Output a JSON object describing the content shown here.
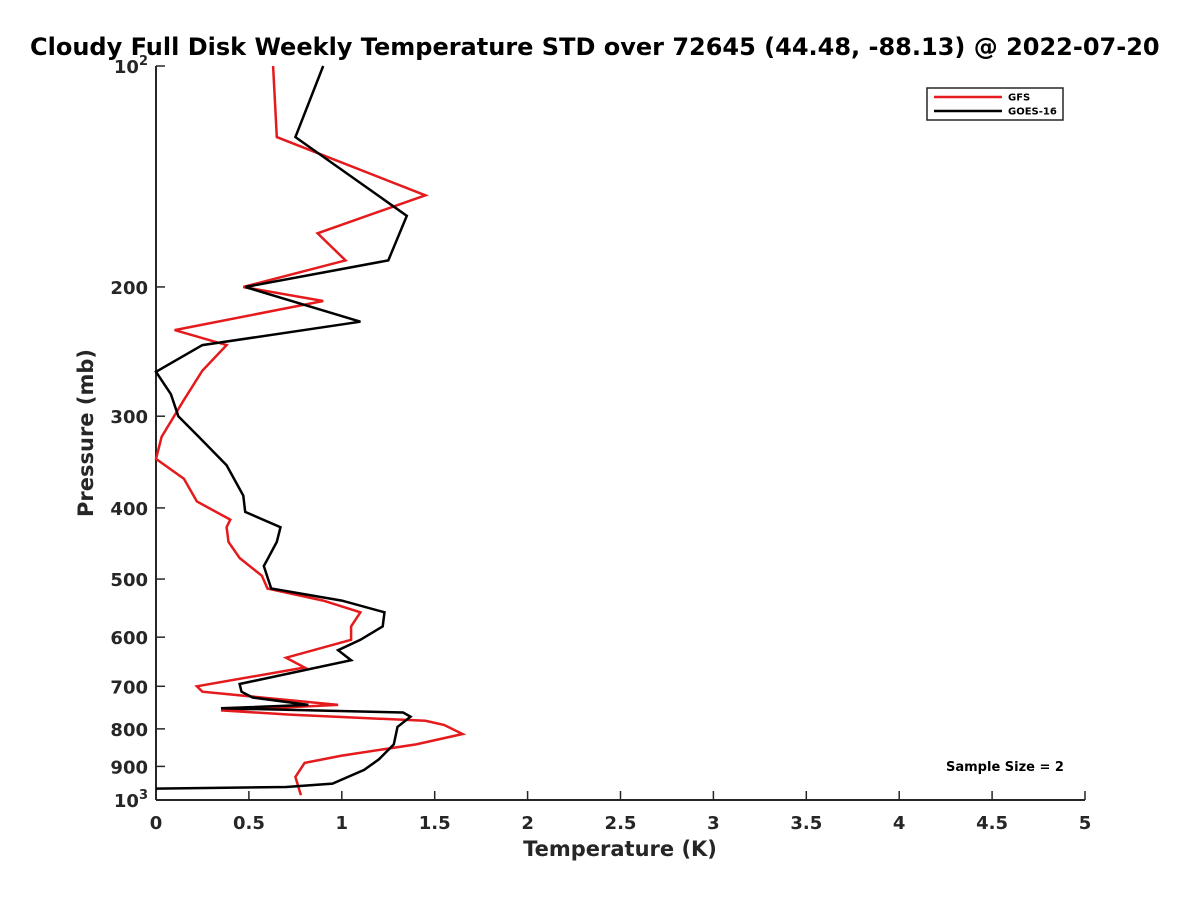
{
  "chart_data": {
    "type": "line",
    "title": "Cloudy Full Disk Weekly Temperature STD over 72645 (44.48, -88.13) @ 2022-07-20",
    "xlabel": "Temperature (K)",
    "ylabel": "Pressure (mb)",
    "xlim": [
      0,
      5
    ],
    "ylim": [
      100,
      1000
    ],
    "yscale": "log",
    "y_reversed": true,
    "x_ticks": [
      "0",
      "0.5",
      "1",
      "1.5",
      "2",
      "2.5",
      "3",
      "3.5",
      "4",
      "4.5",
      "5"
    ],
    "y_ticks": [
      {
        "value": 100,
        "base": "10",
        "exp": "2"
      },
      {
        "value": 200,
        "label": "200"
      },
      {
        "value": 300,
        "label": "300"
      },
      {
        "value": 400,
        "label": "400"
      },
      {
        "value": 500,
        "label": "500"
      },
      {
        "value": 600,
        "label": "600"
      },
      {
        "value": 700,
        "label": "700"
      },
      {
        "value": 800,
        "label": "800"
      },
      {
        "value": 900,
        "label": "900"
      },
      {
        "value": 1000,
        "base": "10",
        "exp": "3"
      }
    ],
    "legend_position": "top-right",
    "series": [
      {
        "name": "GFS",
        "color": "#e41a1c",
        "points": [
          [
            0.63,
            100
          ],
          [
            0.65,
            125
          ],
          [
            1.45,
            150
          ],
          [
            0.87,
            169
          ],
          [
            1.02,
            184
          ],
          [
            0.47,
            200
          ],
          [
            0.9,
            209
          ],
          [
            0.1,
            229
          ],
          [
            0.38,
            240
          ],
          [
            0.25,
            260
          ],
          [
            0.15,
            285
          ],
          [
            0.03,
            320
          ],
          [
            0.0,
            343
          ],
          [
            0.15,
            365
          ],
          [
            0.22,
            392
          ],
          [
            0.4,
            415
          ],
          [
            0.38,
            425
          ],
          [
            0.39,
            445
          ],
          [
            0.45,
            468
          ],
          [
            0.57,
            495
          ],
          [
            0.6,
            515
          ],
          [
            0.9,
            535
          ],
          [
            1.1,
            555
          ],
          [
            1.05,
            580
          ],
          [
            1.05,
            605
          ],
          [
            0.7,
            640
          ],
          [
            0.8,
            660
          ],
          [
            0.22,
            700
          ],
          [
            0.25,
            712
          ],
          [
            0.98,
            742
          ],
          [
            0.35,
            755
          ],
          [
            0.72,
            765
          ],
          [
            1.45,
            780
          ],
          [
            1.55,
            790
          ],
          [
            1.65,
            813
          ],
          [
            1.4,
            840
          ],
          [
            1.0,
            870
          ],
          [
            0.8,
            890
          ],
          [
            0.75,
            930
          ],
          [
            0.78,
            985
          ]
        ]
      },
      {
        "name": "GOES-16",
        "color": "#000000",
        "points": [
          [
            0.9,
            100
          ],
          [
            0.75,
            125
          ],
          [
            1.35,
            160
          ],
          [
            1.25,
            184
          ],
          [
            0.48,
            200
          ],
          [
            1.1,
            223
          ],
          [
            0.25,
            240
          ],
          [
            0.0,
            261
          ],
          [
            0.08,
            280
          ],
          [
            0.12,
            300
          ],
          [
            0.23,
            320
          ],
          [
            0.38,
            350
          ],
          [
            0.47,
            385
          ],
          [
            0.48,
            405
          ],
          [
            0.67,
            425
          ],
          [
            0.65,
            445
          ],
          [
            0.6,
            470
          ],
          [
            0.58,
            480
          ],
          [
            0.62,
            515
          ],
          [
            1.0,
            535
          ],
          [
            1.23,
            555
          ],
          [
            1.22,
            580
          ],
          [
            1.1,
            605
          ],
          [
            0.98,
            625
          ],
          [
            1.05,
            645
          ],
          [
            0.45,
            695
          ],
          [
            0.46,
            712
          ],
          [
            0.52,
            725
          ],
          [
            0.82,
            742
          ],
          [
            0.35,
            750
          ],
          [
            1.33,
            760
          ],
          [
            1.37,
            770
          ],
          [
            1.3,
            795
          ],
          [
            1.28,
            840
          ],
          [
            1.2,
            880
          ],
          [
            1.12,
            910
          ],
          [
            0.95,
            950
          ],
          [
            0.7,
            960
          ],
          [
            0.0,
            965
          ]
        ]
      }
    ],
    "annotations": [
      "Sample Size = 2"
    ]
  }
}
